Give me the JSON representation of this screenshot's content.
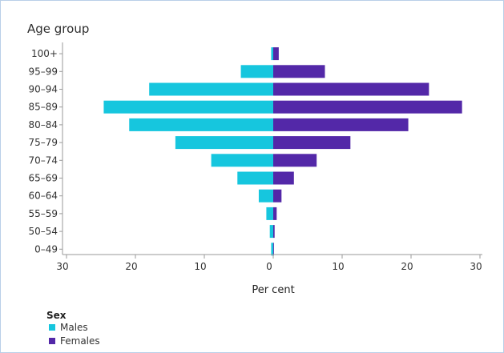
{
  "chart_data": {
    "type": "bar",
    "orientation": "horizontal",
    "ytitle": "Age group",
    "xlabel": "Per cent",
    "categories": [
      "100+",
      "95–99",
      "90–94",
      "85–89",
      "80–84",
      "75–79",
      "70–74",
      "65–69",
      "60–64",
      "55–59",
      "50–54",
      "0–49"
    ],
    "series": [
      {
        "name": "Males",
        "color": "#16c6de",
        "values": [
          0.3,
          4.7,
          18.0,
          24.6,
          20.9,
          14.2,
          9.0,
          5.2,
          2.1,
          1.0,
          0.5,
          0.3
        ]
      },
      {
        "name": "Females",
        "color": "#5328a8",
        "values": [
          0.8,
          7.5,
          22.6,
          27.4,
          19.6,
          11.2,
          6.3,
          3.0,
          1.2,
          0.5,
          0.2,
          0.1
        ]
      }
    ],
    "xticks": [
      "30",
      "20",
      "10",
      "0",
      "10",
      "20",
      "30"
    ],
    "xlim": [
      -30,
      30
    ],
    "legend_title": "Sex",
    "legend_position": "bottom-left"
  }
}
